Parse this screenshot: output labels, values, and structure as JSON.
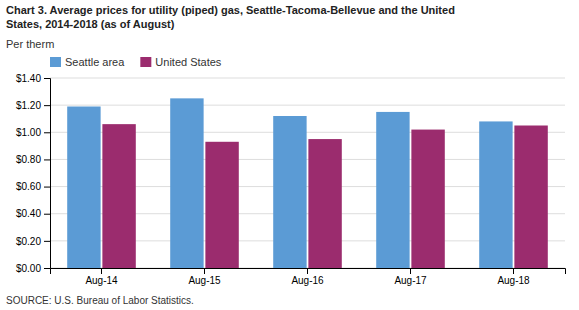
{
  "chart_data": {
    "type": "bar",
    "title": [
      "Chart 3. Average prices for utility (piped) gas, Seattle-Tacoma-Bellevue and the United",
      "States, 2014-2018  (as of August)"
    ],
    "y_label": "Per therm",
    "source": "SOURCE: U.S. Bureau of Labor Statistics.",
    "categories": [
      "Aug-14",
      "Aug-15",
      "Aug-16",
      "Aug-17",
      "Aug-18"
    ],
    "series": [
      {
        "name": "Seattle area",
        "color": "#5B9BD5",
        "values": [
          1.19,
          1.25,
          1.12,
          1.15,
          1.08
        ]
      },
      {
        "name": "United States",
        "color": "#9B2C6E",
        "values": [
          1.06,
          0.93,
          0.95,
          1.02,
          1.05
        ]
      }
    ],
    "ylim": [
      0,
      1.4
    ],
    "yticks": [
      {
        "value": 0,
        "label": "$0.00"
      },
      {
        "value": 0.2,
        "label": "$0.20"
      },
      {
        "value": 0.4,
        "label": "$0.40"
      },
      {
        "value": 0.6,
        "label": "$0.60"
      },
      {
        "value": 0.8,
        "label": "$0.80"
      },
      {
        "value": 1,
        "label": "$1.00"
      },
      {
        "value": 1.2,
        "label": "$1.20"
      },
      {
        "value": 1.4,
        "label": "$1.40"
      }
    ],
    "grid": true,
    "legend": "top-left"
  }
}
